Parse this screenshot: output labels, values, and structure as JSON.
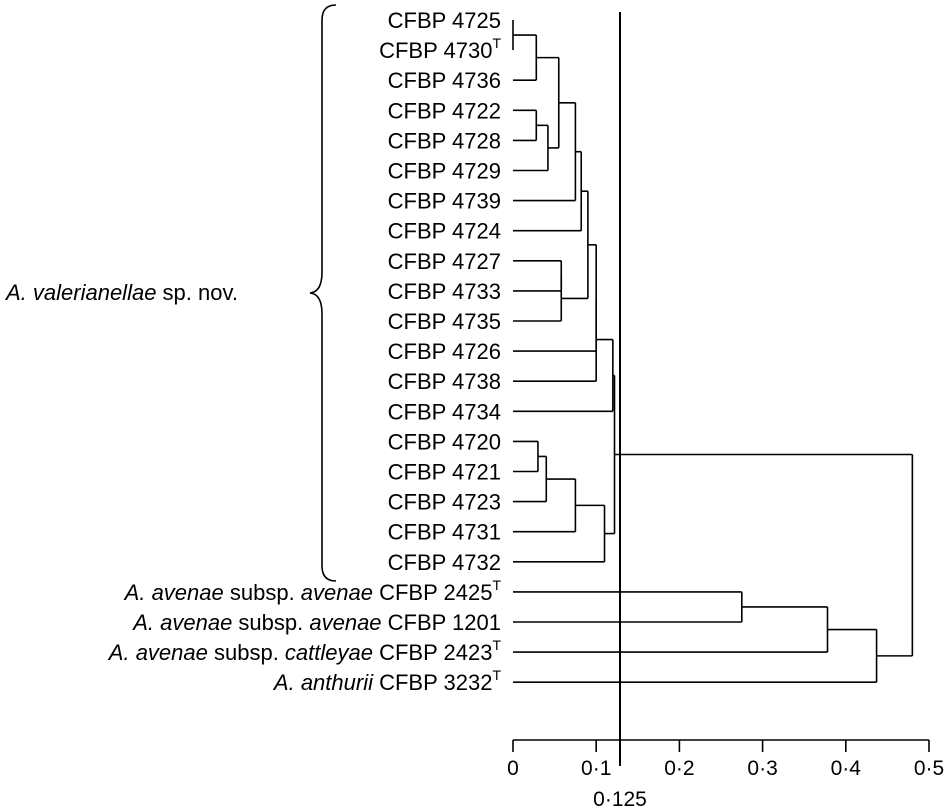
{
  "chart_data": {
    "type": "dendrogram",
    "x_axis": {
      "range": [
        0,
        0.5
      ],
      "ticks": [
        "0",
        "0·1",
        "0·2",
        "0·3",
        "0·4",
        "0·5"
      ]
    },
    "cutoff": {
      "value": 0.125,
      "label": "0·125"
    },
    "group_label": {
      "italic": "A. valerianellae",
      "rest": " sp. nov."
    },
    "leaves": [
      {
        "name": "CFBP 4725",
        "sup": ""
      },
      {
        "name": "CFBP 4730",
        "sup": "T"
      },
      {
        "name": "CFBP 4736",
        "sup": ""
      },
      {
        "name": "CFBP 4722",
        "sup": ""
      },
      {
        "name": "CFBP 4728",
        "sup": ""
      },
      {
        "name": "CFBP 4729",
        "sup": ""
      },
      {
        "name": "CFBP 4739",
        "sup": ""
      },
      {
        "name": "CFBP 4724",
        "sup": ""
      },
      {
        "name": "CFBP 4727",
        "sup": ""
      },
      {
        "name": "CFBP 4733",
        "sup": ""
      },
      {
        "name": "CFBP 4735",
        "sup": ""
      },
      {
        "name": "CFBP 4726",
        "sup": ""
      },
      {
        "name": "CFBP 4738",
        "sup": ""
      },
      {
        "name": "CFBP 4734",
        "sup": ""
      },
      {
        "name": "CFBP 4720",
        "sup": ""
      },
      {
        "name": "CFBP 4721",
        "sup": ""
      },
      {
        "name": "CFBP 4723",
        "sup": ""
      },
      {
        "name": "CFBP 4731",
        "sup": ""
      },
      {
        "name": "CFBP 4732",
        "sup": ""
      },
      {
        "parts": [
          {
            "t": "A. avenae",
            "i": true
          },
          {
            "t": " subsp. ",
            "i": false
          },
          {
            "t": "avenae",
            "i": true
          },
          {
            "t": " CFBP 2425",
            "i": false
          }
        ],
        "sup": "T"
      },
      {
        "parts": [
          {
            "t": "A. avenae",
            "i": true
          },
          {
            "t": " subsp. ",
            "i": false
          },
          {
            "t": "avenae",
            "i": true
          },
          {
            "t": " CFBP 1201",
            "i": false
          }
        ],
        "sup": ""
      },
      {
        "parts": [
          {
            "t": "A. avenae",
            "i": true
          },
          {
            "t": " subsp. ",
            "i": false
          },
          {
            "t": "cattleyae",
            "i": true
          },
          {
            "t": " CFBP 2423",
            "i": false
          }
        ],
        "sup": "T"
      },
      {
        "parts": [
          {
            "t": "A. anthurii",
            "i": true
          },
          {
            "t": " CFBP 3232",
            "i": false
          }
        ],
        "sup": "T"
      }
    ],
    "merges": [
      {
        "a": "L0",
        "b": "L1",
        "h": 0.0
      },
      {
        "a": "N0",
        "b": "L2",
        "h": 0.028
      },
      {
        "a": "L3",
        "b": "L4",
        "h": 0.028
      },
      {
        "a": "N2",
        "b": "L5",
        "h": 0.042
      },
      {
        "a": "N1",
        "b": "N3",
        "h": 0.055
      },
      {
        "a": "N4",
        "b": "L6",
        "h": 0.075
      },
      {
        "a": "N5",
        "b": "L7",
        "h": 0.082
      },
      {
        "a": "L8",
        "b": "L9",
        "h": 0.058
      },
      {
        "a": "N7",
        "b": "L10",
        "h": 0.058
      },
      {
        "a": "N6",
        "b": "N8",
        "h": 0.09
      },
      {
        "a": "N9",
        "b": "L11",
        "h": 0.1
      },
      {
        "a": "N10",
        "b": "L12",
        "h": 0.1
      },
      {
        "a": "L14",
        "b": "L15",
        "h": 0.03
      },
      {
        "a": "N12",
        "b": "L16",
        "h": 0.04
      },
      {
        "a": "N13",
        "b": "L17",
        "h": 0.075
      },
      {
        "a": "N14",
        "b": "L18",
        "h": 0.11
      },
      {
        "a": "N11",
        "b": "L13",
        "h": 0.12
      },
      {
        "a": "N16",
        "b": "N15",
        "h": 0.122
      },
      {
        "a": "L19",
        "b": "L20",
        "h": 0.275
      },
      {
        "a": "N18",
        "b": "L21",
        "h": 0.378
      },
      {
        "a": "N19",
        "b": "L22",
        "h": 0.437
      },
      {
        "a": "N17",
        "b": "N20",
        "h": 0.48
      }
    ]
  }
}
